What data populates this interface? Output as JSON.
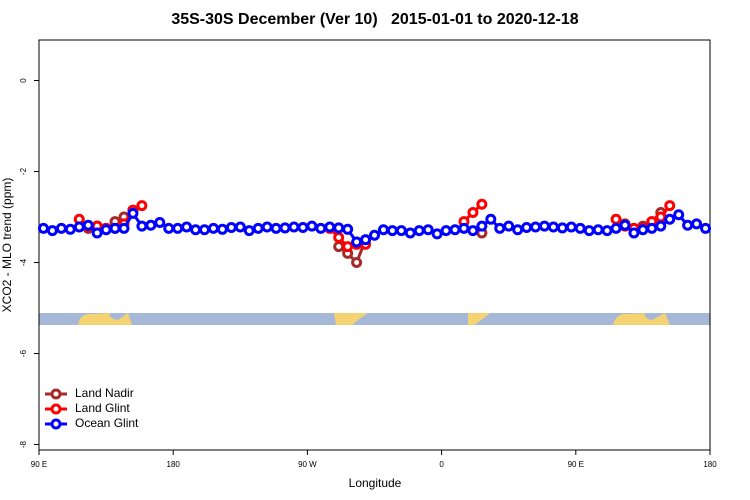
{
  "chart_data": {
    "type": "line",
    "title": "35S-30S December (Ver 10)   2015-01-01 to 2020-12-18",
    "xlabel": "Longitude",
    "ylabel": "XCO2 - MLO trend (ppm)",
    "xlim": [
      90,
      540
    ],
    "ylim": [
      -8.12,
      0.89
    ],
    "xticks": [
      {
        "value": 90,
        "label": "90 E"
      },
      {
        "value": 180,
        "label": "180"
      },
      {
        "value": 270,
        "label": "90 W"
      },
      {
        "value": 360,
        "label": "0"
      },
      {
        "value": 450,
        "label": "90 E"
      },
      {
        "value": 540,
        "label": "180"
      }
    ],
    "yticks": [
      0,
      -2,
      -4,
      -6,
      -8
    ],
    "legend": "bottom-left",
    "series": [
      {
        "name": "Land Nadir",
        "color": "#a52a2a",
        "x": [
          123,
          129,
          135,
          141,
          147,
          153,
          200,
          291,
          297,
          303,
          309,
          340,
          387,
          430,
          483,
          489,
          495,
          501,
          507
        ],
        "values": [
          -3.25,
          -3.2,
          -3.25,
          -3.1,
          -3.0,
          -2.85,
          null,
          -3.65,
          -3.8,
          -4.0,
          -3.5,
          null,
          -3.35,
          null,
          -3.15,
          -3.25,
          -3.2,
          -3.1,
          -2.9
        ]
      },
      {
        "name": "Land Glint",
        "color": "#ff0000",
        "x": [
          117,
          123,
          129,
          135,
          141,
          147,
          153,
          159,
          200,
          285,
          291,
          297,
          303,
          309,
          340,
          375,
          381,
          387,
          430,
          477,
          483,
          489,
          495,
          501,
          507,
          513
        ],
        "values": [
          -3.05,
          -3.2,
          -3.2,
          -3.25,
          -3.25,
          -3.15,
          -2.85,
          -2.75,
          null,
          -3.25,
          -3.45,
          -3.65,
          -3.6,
          -3.6,
          null,
          -3.1,
          -2.9,
          -2.72,
          null,
          -3.05,
          -3.2,
          -3.25,
          -3.25,
          -3.1,
          -3.0,
          -2.75
        ]
      },
      {
        "name": "Ocean Glint",
        "color": "#0000ff",
        "x": [
          93,
          99,
          105,
          111,
          117,
          123,
          129,
          135,
          141,
          147,
          153,
          159,
          165,
          171,
          177,
          183,
          189,
          195,
          201,
          207,
          213,
          219,
          225,
          231,
          237,
          243,
          249,
          255,
          261,
          267,
          273,
          279,
          285,
          291,
          297,
          303,
          309,
          315,
          321,
          327,
          333,
          339,
          345,
          351,
          357,
          363,
          369,
          375,
          381,
          387,
          393,
          399,
          405,
          411,
          417,
          423,
          429,
          435,
          441,
          447,
          453,
          459,
          465,
          471,
          477,
          483,
          489,
          495,
          501,
          507,
          513,
          519,
          525,
          531,
          537
        ],
        "values": [
          -3.25,
          -3.3,
          -3.25,
          -3.27,
          -3.22,
          -3.18,
          -3.35,
          -3.28,
          -3.25,
          -3.25,
          -2.92,
          -3.2,
          -3.18,
          -3.12,
          -3.25,
          -3.25,
          -3.22,
          -3.28,
          -3.28,
          -3.25,
          -3.27,
          -3.23,
          -3.22,
          -3.3,
          -3.25,
          -3.22,
          -3.25,
          -3.24,
          -3.22,
          -3.23,
          -3.2,
          -3.25,
          -3.22,
          -3.24,
          -3.27,
          -3.55,
          -3.5,
          -3.4,
          -3.28,
          -3.3,
          -3.3,
          -3.35,
          -3.3,
          -3.28,
          -3.37,
          -3.3,
          -3.28,
          -3.25,
          -3.3,
          -3.2,
          -3.05,
          -3.25,
          -3.2,
          -3.28,
          -3.23,
          -3.22,
          -3.2,
          -3.22,
          -3.24,
          -3.22,
          -3.25,
          -3.3,
          -3.28,
          -3.3,
          -3.25,
          -3.18,
          -3.35,
          -3.28,
          -3.25,
          -3.2,
          -3.05,
          -2.95,
          -3.18,
          -3.15,
          -3.25
        ]
      }
    ]
  }
}
